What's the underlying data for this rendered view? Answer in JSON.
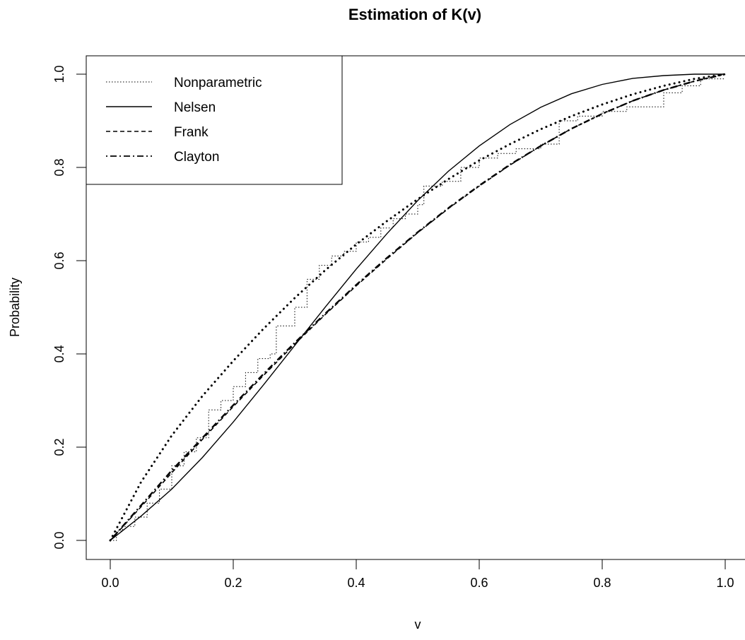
{
  "chart_data": {
    "type": "line",
    "title": "Estimation of K(v)",
    "xlabel": "v",
    "ylabel": "Probability",
    "xlim": [
      0,
      1
    ],
    "ylim": [
      0,
      1
    ],
    "xticks": [
      "0.0",
      "0.2",
      "0.4",
      "0.6",
      "0.8",
      "1.0"
    ],
    "yticks": [
      "0.0",
      "0.2",
      "0.4",
      "0.6",
      "0.8",
      "1.0"
    ],
    "grid": false,
    "legend_position": "top-left",
    "legend": [
      "Nonparametric",
      "Nelsen",
      "Frank",
      "Clayton"
    ],
    "series": [
      {
        "name": "Nonparametric",
        "line_style": "dotted-step",
        "x": [
          0.0,
          0.01,
          0.02,
          0.04,
          0.06,
          0.08,
          0.1,
          0.12,
          0.14,
          0.16,
          0.18,
          0.2,
          0.22,
          0.24,
          0.26,
          0.27,
          0.3,
          0.32,
          0.34,
          0.36,
          0.38,
          0.4,
          0.42,
          0.44,
          0.46,
          0.48,
          0.5,
          0.51,
          0.54,
          0.57,
          0.6,
          0.63,
          0.66,
          0.7,
          0.73,
          0.76,
          0.8,
          0.84,
          0.9,
          0.93,
          0.96,
          1.0
        ],
        "y": [
          0.0,
          0.02,
          0.03,
          0.05,
          0.08,
          0.11,
          0.16,
          0.19,
          0.22,
          0.28,
          0.3,
          0.33,
          0.36,
          0.39,
          0.4,
          0.46,
          0.5,
          0.56,
          0.59,
          0.61,
          0.62,
          0.64,
          0.65,
          0.67,
          0.69,
          0.7,
          0.72,
          0.76,
          0.77,
          0.8,
          0.82,
          0.83,
          0.84,
          0.85,
          0.9,
          0.91,
          0.92,
          0.93,
          0.96,
          0.975,
          0.99,
          0.99
        ]
      },
      {
        "name": "Nelsen",
        "line_style": "solid",
        "x": [
          0.0,
          0.05,
          0.1,
          0.15,
          0.2,
          0.25,
          0.3,
          0.35,
          0.4,
          0.45,
          0.5,
          0.55,
          0.6,
          0.65,
          0.7,
          0.75,
          0.8,
          0.85,
          0.9,
          0.95,
          1.0
        ],
        "y": [
          0.0,
          0.052,
          0.11,
          0.178,
          0.254,
          0.335,
          0.418,
          0.501,
          0.582,
          0.658,
          0.729,
          0.792,
          0.846,
          0.892,
          0.929,
          0.958,
          0.978,
          0.991,
          0.997,
          1.0,
          1.0
        ]
      },
      {
        "name": "Frank",
        "line_style": "dashed",
        "x": [
          0.0,
          0.05,
          0.1,
          0.15,
          0.2,
          0.25,
          0.3,
          0.35,
          0.4,
          0.45,
          0.5,
          0.55,
          0.6,
          0.65,
          0.7,
          0.75,
          0.8,
          0.85,
          0.9,
          0.95,
          1.0
        ],
        "y": [
          0.0,
          0.072,
          0.145,
          0.217,
          0.287,
          0.355,
          0.421,
          0.485,
          0.546,
          0.604,
          0.66,
          0.712,
          0.76,
          0.805,
          0.846,
          0.883,
          0.915,
          0.943,
          0.966,
          0.985,
          1.0
        ]
      },
      {
        "name": "Clayton",
        "line_style": "dotdash",
        "x": [
          0.0,
          0.05,
          0.1,
          0.15,
          0.2,
          0.25,
          0.3,
          0.35,
          0.4,
          0.45,
          0.5,
          0.55,
          0.6,
          0.65,
          0.7,
          0.75,
          0.8,
          0.85,
          0.9,
          0.95,
          1.0
        ],
        "y": [
          0.0,
          0.075,
          0.15,
          0.22,
          0.29,
          0.358,
          0.424,
          0.487,
          0.548,
          0.606,
          0.661,
          0.713,
          0.761,
          0.806,
          0.846,
          0.883,
          0.915,
          0.943,
          0.966,
          0.985,
          1.0
        ]
      },
      {
        "name": "",
        "line_style": "dotted-heavy",
        "x": [
          0.0,
          0.05,
          0.1,
          0.15,
          0.2,
          0.25,
          0.3,
          0.35,
          0.4,
          0.45,
          0.5,
          0.55,
          0.6,
          0.65,
          0.7,
          0.75,
          0.8,
          0.85,
          0.9,
          0.95,
          1.0
        ],
        "y": [
          0.0,
          0.125,
          0.225,
          0.31,
          0.385,
          0.455,
          0.52,
          0.58,
          0.635,
          0.685,
          0.732,
          0.775,
          0.815,
          0.85,
          0.882,
          0.91,
          0.935,
          0.957,
          0.975,
          0.99,
          1.0
        ]
      }
    ]
  }
}
